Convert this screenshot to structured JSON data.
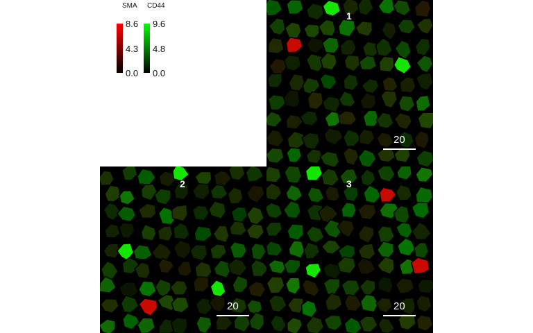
{
  "legend": {
    "sma": {
      "title": "SMA",
      "max": "8.6",
      "mid": "4.3",
      "min": "0.0",
      "color": "#ff0000"
    },
    "cd44": {
      "title": "CD44",
      "max": "9.6",
      "mid": "4.8",
      "min": "0.0",
      "color": "#00ff00"
    }
  },
  "panels": [
    {
      "label": "1",
      "scale_label": "20"
    },
    {
      "label": "2",
      "scale_label": "20"
    },
    {
      "label": "3",
      "scale_label": "20"
    }
  ],
  "colors": {
    "background": "#ffffff",
    "tissue": "#000000"
  }
}
